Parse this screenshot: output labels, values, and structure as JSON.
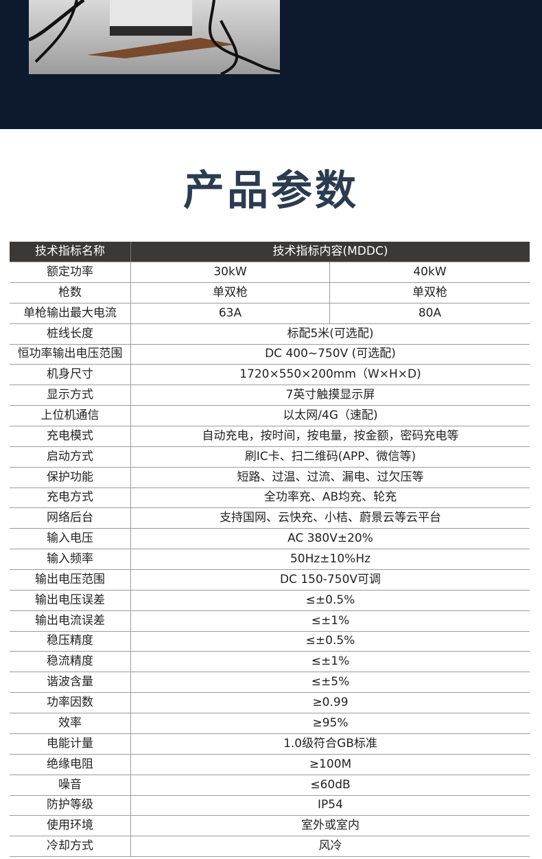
{
  "title": "产品参数",
  "table": {
    "header": [
      "技术指标名称",
      "技术指标内容(MDDC)"
    ],
    "rows": [
      [
        "额定功率",
        "30kW",
        "40kW"
      ],
      [
        "枪数",
        "单双枪",
        "单双枪"
      ],
      [
        "单枪输出最大电流",
        "63A",
        "80A"
      ],
      [
        "桩线长度",
        "标配5米(可选配)"
      ],
      [
        "恒功率输出电压范围",
        "DC 400~750V (可选配)"
      ],
      [
        "机身尺寸",
        "1720×550×200mm（W×H×D)"
      ],
      [
        "显示方式",
        "7英寸触摸显示屏"
      ],
      [
        "上位机通信",
        "以太网/4G（速配)"
      ],
      [
        "充电模式",
        "自动充电，按时间，按电量，按金额，密码充电等"
      ],
      [
        "启动方式",
        "刷IC卡、扫二维码(APP、微信等)"
      ],
      [
        "保护功能",
        "短路、过温、过流、漏电、过欠压等"
      ],
      [
        "充电方式",
        "全功率充、AB均充、轮充"
      ],
      [
        "网络后台",
        "支持国网、云快充、小桔、蔚景云等云平台"
      ],
      [
        "输入电压",
        "AC 380V±20%"
      ],
      [
        "输入频率",
        "50Hz±10%Hz"
      ],
      [
        "输出电压范围",
        "DC 150-750V可调"
      ],
      [
        "输出电压误差",
        "≤±0.5%"
      ],
      [
        "输出电流误差",
        "≤±1%"
      ],
      [
        "稳压精度",
        "≤±0.5%"
      ],
      [
        "稳流精度",
        "≤±1%"
      ],
      [
        "谐波含量",
        "≤±5%"
      ],
      [
        "功率因数",
        "≥0.99"
      ],
      [
        "效率",
        "≥95%"
      ],
      [
        "电能计量",
        "1.0级符合GB标准"
      ],
      [
        "绝缘电阻",
        "≥100M"
      ],
      [
        "噪音",
        "≤60dB"
      ],
      [
        "防护等级",
        "IP54"
      ],
      [
        "使用环境",
        "室外或室内"
      ],
      [
        "冷却方式",
        "风冷"
      ]
    ]
  }
}
